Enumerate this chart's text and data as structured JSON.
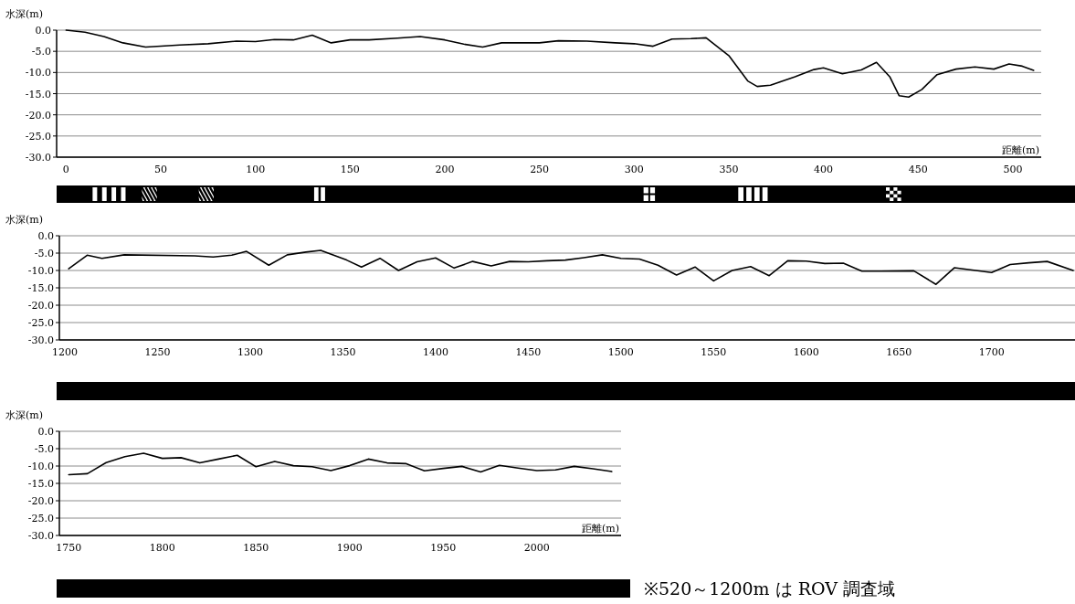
{
  "chart_data": [
    {
      "type": "line",
      "ylabel": "水深(m)",
      "xlabel": "距離(m)",
      "grid": "y",
      "color": "#000000",
      "xlim": [
        -5,
        515
      ],
      "xticks": [
        0,
        50,
        100,
        150,
        200,
        250,
        300,
        350,
        400,
        450,
        500
      ],
      "ylim": [
        -30,
        0
      ],
      "yticks": [
        {
          "value": 0,
          "label": "0.0"
        },
        {
          "value": -5,
          "label": "-5.0"
        },
        {
          "value": -10,
          "label": "-10.0"
        },
        {
          "value": -15,
          "label": "-15.0"
        },
        {
          "value": -20,
          "label": "-20.0"
        },
        {
          "value": -25,
          "label": "-25.0"
        },
        {
          "value": -30,
          "label": "-30.0"
        }
      ],
      "x": [
        0,
        10,
        20,
        30,
        42,
        60,
        75,
        90,
        100,
        110,
        120,
        130,
        140,
        150,
        160,
        175,
        187,
        200,
        210,
        220,
        230,
        250,
        260,
        275,
        290,
        300,
        310,
        320,
        330,
        338,
        350,
        360,
        365,
        372,
        385,
        395,
        400,
        410,
        420,
        428,
        435,
        440,
        445,
        452,
        460,
        470,
        480,
        490,
        498,
        505,
        511
      ],
      "values": [
        0,
        -0.5,
        -1.5,
        -3,
        -4,
        -3.5,
        -3.2,
        -2.6,
        -2.7,
        -2.2,
        -2.3,
        -1.2,
        -3,
        -2.3,
        -2.3,
        -1.9,
        -1.5,
        -2.3,
        -3.3,
        -4,
        -3,
        -3,
        -2.5,
        -2.6,
        -3,
        -3.2,
        -3.8,
        -2.1,
        -2,
        -1.8,
        -6,
        -12,
        -13.3,
        -13,
        -11,
        -9.3,
        -8.9,
        -10.3,
        -9.4,
        -7.6,
        -11,
        -15.5,
        -15.8,
        -14,
        -10.5,
        -9.2,
        -8.7,
        -9.2,
        -8,
        -8.5,
        -9.5
      ]
    },
    {
      "type": "line",
      "ylabel": "水深(m)",
      "grid": "y",
      "color": "#000000",
      "xlim": [
        1197,
        1745
      ],
      "xticks": [
        1200,
        1250,
        1300,
        1350,
        1400,
        1450,
        1500,
        1550,
        1600,
        1650,
        1700
      ],
      "ylim": [
        -30,
        0
      ],
      "yticks": [
        {
          "value": 0,
          "label": "0.0"
        },
        {
          "value": -5,
          "label": "-5.0"
        },
        {
          "value": -10,
          "label": "-10.0"
        },
        {
          "value": -15,
          "label": "-15.0"
        },
        {
          "value": -20,
          "label": "-20.0"
        },
        {
          "value": -25,
          "label": "-25.0"
        },
        {
          "value": -30,
          "label": "-30.0"
        }
      ],
      "x": [
        1202,
        1212,
        1220,
        1232,
        1270,
        1280,
        1290,
        1298,
        1310,
        1320,
        1330,
        1338,
        1352,
        1360,
        1370,
        1380,
        1390,
        1400,
        1410,
        1420,
        1430,
        1440,
        1450,
        1460,
        1470,
        1480,
        1490,
        1500,
        1510,
        1520,
        1530,
        1540,
        1550,
        1560,
        1570,
        1580,
        1590,
        1600,
        1610,
        1620,
        1630,
        1640,
        1658,
        1670,
        1680,
        1700,
        1710,
        1720,
        1730,
        1744
      ],
      "values": [
        -9.5,
        -5.6,
        -6.5,
        -5.5,
        -5.8,
        -6.1,
        -5.6,
        -4.5,
        -8.5,
        -5.5,
        -4.7,
        -4.2,
        -7,
        -9,
        -6.5,
        -10,
        -7.5,
        -6.4,
        -9.3,
        -7.4,
        -8.7,
        -7.4,
        -7.5,
        -7.2,
        -7,
        -6.3,
        -5.5,
        -6.5,
        -6.7,
        -8.5,
        -11.3,
        -9,
        -13,
        -10,
        -8.9,
        -11.5,
        -7.2,
        -7.3,
        -8,
        -7.9,
        -10.2,
        -10.2,
        -10.1,
        -14,
        -9.2,
        -10.6,
        -8.3,
        -7.8,
        -7.4,
        -10
      ]
    },
    {
      "type": "line",
      "ylabel": "水深(m)",
      "xlabel": "距離(m)",
      "grid": "y",
      "color": "#000000",
      "annotations": [
        "※520～1200m は ROV 調査域"
      ],
      "xlim": [
        1745,
        2045
      ],
      "xticks": [
        1750,
        1800,
        1850,
        1900,
        1950,
        2000
      ],
      "ylim": [
        -30,
        0
      ],
      "yticks": [
        {
          "value": 0,
          "label": "0.0"
        },
        {
          "value": -5,
          "label": "-5.0"
        },
        {
          "value": -10,
          "label": "-10.0"
        },
        {
          "value": -15,
          "label": "-15.0"
        },
        {
          "value": -20,
          "label": "-20.0"
        },
        {
          "value": -25,
          "label": "-25.0"
        },
        {
          "value": -30,
          "label": "-30.0"
        }
      ],
      "x": [
        1750,
        1760,
        1770,
        1780,
        1790,
        1800,
        1810,
        1820,
        1830,
        1840,
        1850,
        1860,
        1870,
        1880,
        1890,
        1900,
        1910,
        1920,
        1930,
        1940,
        1950,
        1960,
        1970,
        1980,
        1990,
        2000,
        2010,
        2020,
        2030,
        2040
      ],
      "values": [
        -12.5,
        -12.2,
        -9,
        -7.3,
        -6.3,
        -7.8,
        -7.6,
        -9.1,
        -8,
        -6.9,
        -10.2,
        -8.7,
        -9.9,
        -10.2,
        -11.3,
        -9.9,
        -8,
        -9.1,
        -9.3,
        -11.4,
        -10.7,
        -10.1,
        -11.7,
        -9.8,
        -10.6,
        -11.3,
        -11.1,
        -10.1,
        -10.8,
        -11.6
      ]
    }
  ]
}
